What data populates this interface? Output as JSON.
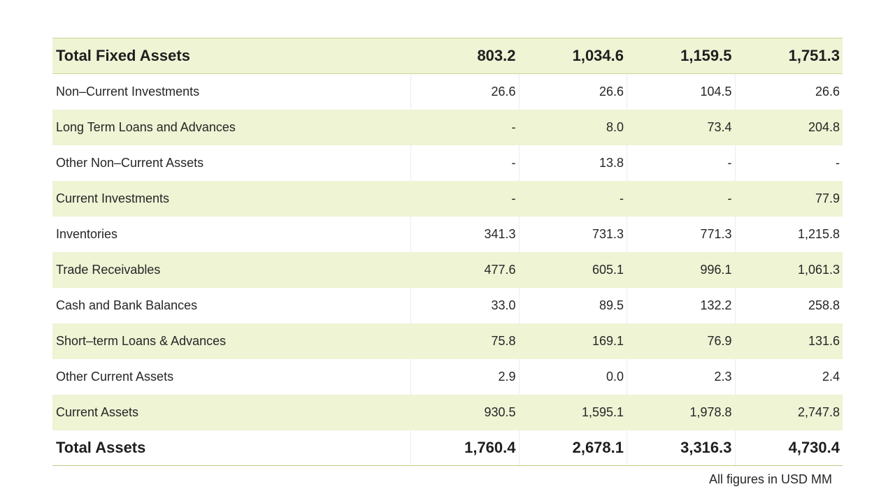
{
  "table": {
    "header_row": {
      "label": "Total Fixed Assets",
      "values": [
        "803.2",
        "1,034.6",
        "1,159.5",
        "1,751.3"
      ]
    },
    "rows": [
      {
        "label": "Non–Current Investments",
        "values": [
          "26.6",
          "26.6",
          "104.5",
          "26.6"
        ]
      },
      {
        "label": "Long Term Loans and Advances",
        "values": [
          "-",
          "8.0",
          "73.4",
          "204.8"
        ]
      },
      {
        "label": "Other Non–Current Assets",
        "values": [
          "-",
          "13.8",
          "-",
          "-"
        ]
      },
      {
        "label": "Current Investments",
        "values": [
          "-",
          "-",
          "-",
          "77.9"
        ]
      },
      {
        "label": "Inventories",
        "values": [
          "341.3",
          "731.3",
          "771.3",
          "1,215.8"
        ]
      },
      {
        "label": "Trade Receivables",
        "values": [
          "477.6",
          "605.1",
          "996.1",
          "1,061.3"
        ]
      },
      {
        "label": "Cash and Bank Balances",
        "values": [
          "33.0",
          "89.5",
          "132.2",
          "258.8"
        ]
      },
      {
        "label": "Short–term Loans & Advances",
        "values": [
          "75.8",
          "169.1",
          "76.9",
          "131.6"
        ]
      },
      {
        "label": "Other Current Assets",
        "values": [
          "2.9",
          "0.0",
          "2.3",
          "2.4"
        ]
      },
      {
        "label": "Current Assets",
        "values": [
          "930.5",
          "1,595.1",
          "1,978.8",
          "2,747.8"
        ]
      }
    ],
    "total_row": {
      "label": "Total Assets",
      "values": [
        "1,760.4",
        "2,678.1",
        "3,316.3",
        "4,730.4"
      ]
    }
  },
  "footnote": "All figures in USD MM",
  "colors": {
    "band": "#eef4d4",
    "rule": "#c7d79a"
  }
}
